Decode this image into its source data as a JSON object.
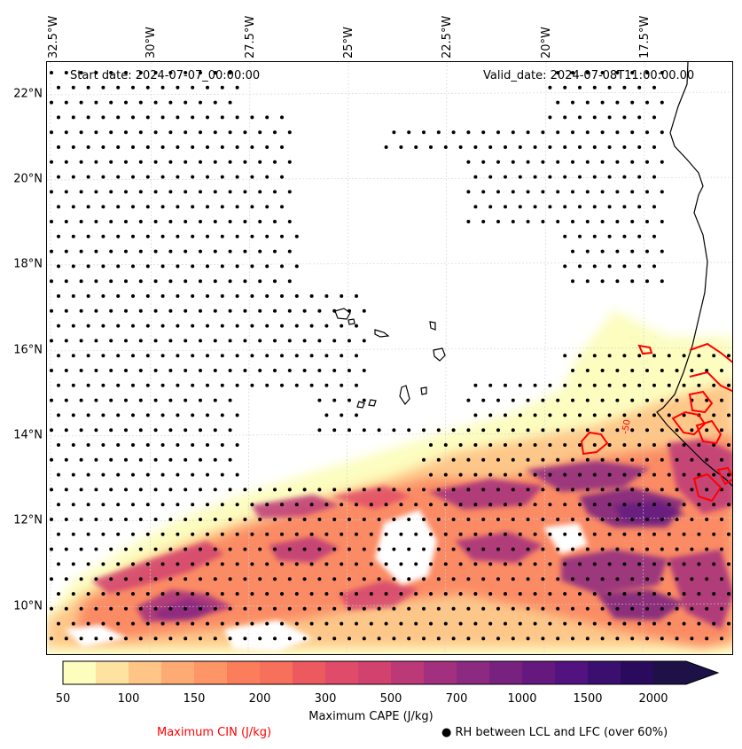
{
  "map": {
    "start_date": "Start date: 2024-07-07_00:00:00",
    "valid_date": "Valid_date: 2024-07-08T11:00:00.00",
    "lon_labels": [
      "32.5°W",
      "30°W",
      "27.5°W",
      "25°W",
      "22.5°W",
      "20°W",
      "17.5°W"
    ],
    "lat_labels": [
      "22°N",
      "20°N",
      "18°N",
      "16°N",
      "14°N",
      "12°N",
      "10°N"
    ],
    "cin_contour_label": "-50",
    "colors": {
      "cin_contour": "#ff0000",
      "coastline": "#000000",
      "rh_dots": "#000000"
    }
  },
  "colorbar": {
    "tick_labels": [
      "50",
      "100",
      "150",
      "200",
      "300",
      "500",
      "700",
      "1000",
      "1500",
      "2000"
    ],
    "title": "Maximum CAPE (J/kg)",
    "colormap": [
      "#fcfdbf",
      "#fde2a1",
      "#fec587",
      "#feaa74",
      "#fd9567",
      "#fb7d5b",
      "#f6705c",
      "#ec5a5f",
      "#df4b68",
      "#d1426f",
      "#bc3978",
      "#a3307e",
      "#8c2981",
      "#782280",
      "#65197f",
      "#521280",
      "#3b0f70",
      "#2a0a5c",
      "#1d1147"
    ]
  },
  "legend": {
    "cin": "Maximum CIN (J/kg)",
    "rh": "● RH between LCL and LFC (over 60%)"
  }
}
